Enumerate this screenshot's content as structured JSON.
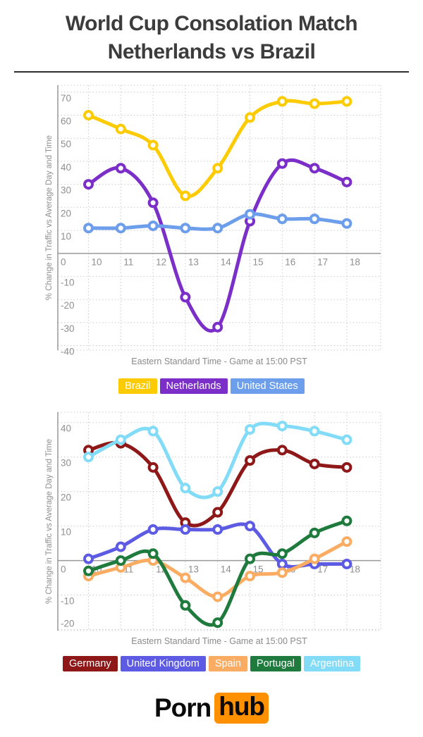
{
  "title": {
    "line1": "World Cup Consolation Match",
    "line2": "Netherlands vs Brazil"
  },
  "chart_data": [
    {
      "type": "line",
      "x": [
        10,
        11,
        12,
        13,
        14,
        15,
        16,
        17,
        18
      ],
      "xlabel": "Eastern Standard Time - Game at 15:00 PST",
      "ylabel": "% Change in Traffic vs Average Day and Time",
      "ylim": [
        -42,
        73
      ],
      "yticks": [
        70,
        60,
        50,
        40,
        30,
        20,
        10,
        0,
        -10,
        -20,
        -30,
        -40
      ],
      "grid": true,
      "legend_position": "bottom",
      "series": [
        {
          "name": "Brazil",
          "color": "#FDCB02",
          "values": [
            60,
            54,
            47,
            25,
            37,
            59,
            66,
            65,
            66
          ]
        },
        {
          "name": "Netherlands",
          "color": "#7C2EC8",
          "values": [
            30,
            37,
            22,
            -19,
            -32,
            14,
            39,
            37,
            31
          ]
        },
        {
          "name": "United States",
          "color": "#6D9EEB",
          "values": [
            11,
            11,
            12,
            11,
            11,
            17,
            15,
            15,
            13
          ]
        }
      ]
    },
    {
      "type": "line",
      "x": [
        10,
        11,
        12,
        13,
        14,
        15,
        16,
        17,
        18
      ],
      "xlabel": "Eastern Standard Time - Game at 15:00 PST",
      "ylabel": "% Change in Traffic vs Average Day and Time",
      "ylim": [
        -20.3,
        43
      ],
      "yticks": [
        40,
        30,
        20,
        10,
        0,
        -10,
        -20
      ],
      "grid": true,
      "legend_position": "bottom",
      "series": [
        {
          "name": "Germany",
          "color": "#8E1818",
          "values": [
            32,
            34,
            27,
            11,
            14,
            29,
            32,
            28,
            27
          ]
        },
        {
          "name": "United Kingdom",
          "color": "#5D5BE3",
          "values": [
            0.5,
            4,
            9,
            9,
            9,
            10,
            -1,
            -1,
            -1
          ]
        },
        {
          "name": "Spain",
          "color": "#FBAC63",
          "values": [
            -4.5,
            -2,
            0,
            -5,
            -10.5,
            -4.5,
            -3.5,
            0.5,
            5.5
          ]
        },
        {
          "name": "Portugal",
          "color": "#1F7B3D",
          "values": [
            -3,
            0,
            2,
            -13,
            -18,
            0.5,
            2,
            8,
            11.5
          ]
        },
        {
          "name": "Argentina",
          "color": "#82DCF7",
          "values": [
            30,
            35,
            37.5,
            21,
            20,
            38,
            39,
            37.5,
            35
          ]
        }
      ]
    }
  ],
  "logo": {
    "part1": "Porn",
    "part2": "hub"
  }
}
